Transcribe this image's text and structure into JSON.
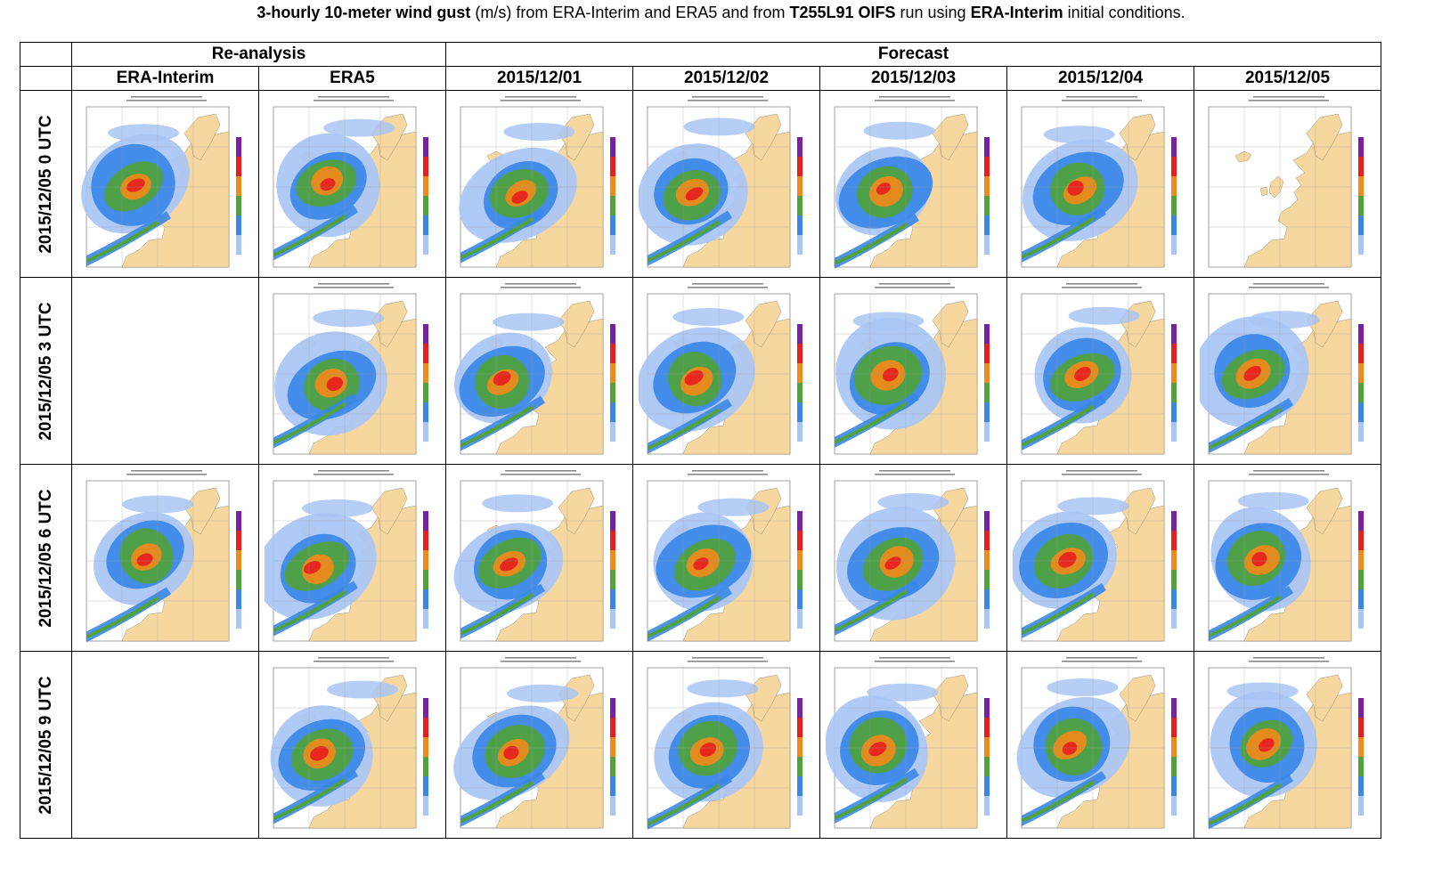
{
  "title": {
    "part1_bold": "3-hourly 10-meter wind gust",
    "part2": " (m/s) from ERA-Interim and ERA5 and from ",
    "part3_bold": "T255L91 OIFS",
    "part4": " run using ",
    "part5_bold": "ERA-Interim",
    "part6": " initial conditions."
  },
  "groups": {
    "reanalysis": "Re-analysis",
    "forecast": "Forecast"
  },
  "columns": [
    "ERA-Interim",
    "ERA5",
    "2015/12/01",
    "2015/12/02",
    "2015/12/03",
    "2015/12/04",
    "2015/12/05"
  ],
  "rows": [
    {
      "label": "2015/12/05 0 UTC",
      "cells": [
        "map",
        "map",
        "map",
        "map",
        "map",
        "map",
        "blank-map"
      ]
    },
    {
      "label": "2015/12/05 3 UTC",
      "cells": [
        "empty",
        "map",
        "map",
        "map",
        "map",
        "map",
        "map"
      ]
    },
    {
      "label": "2015/12/05 6 UTC",
      "cells": [
        "map",
        "map",
        "map",
        "map",
        "map",
        "map",
        "map"
      ]
    },
    {
      "label": "2015/12/05 9 UTC",
      "cells": [
        "empty",
        "map",
        "map",
        "map",
        "map",
        "map",
        "map"
      ]
    }
  ],
  "colors": {
    "land": "#f6d7a0",
    "sea": "#ffffff",
    "c15": "#a9c6f5",
    "c20": "#3a87e8",
    "c25": "#4fa33a",
    "c30": "#f08a1a",
    "c35": "#e81e1e",
    "c40": "#7a1fa8",
    "border": "#000000"
  },
  "colorbar_colors": [
    "#a9c6f5",
    "#3a87e8",
    "#4fa33a",
    "#f08a1a",
    "#e81e1e",
    "#7a1fa8"
  ]
}
